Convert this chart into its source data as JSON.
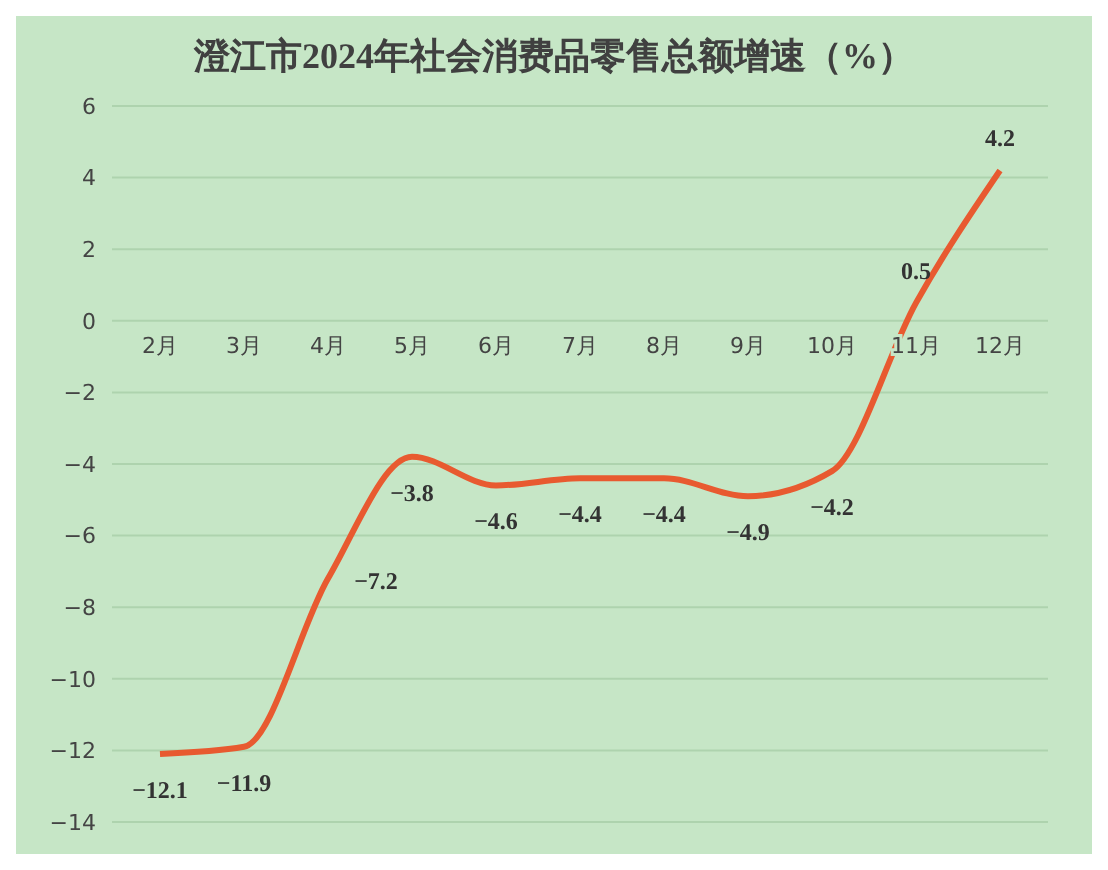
{
  "chart_data": {
    "type": "line",
    "title": "澄江市2024年社会消费品零售总额增速（%）",
    "categories": [
      "2月",
      "3月",
      "4月",
      "5月",
      "6月",
      "7月",
      "8月",
      "9月",
      "10月",
      "11月",
      "12月"
    ],
    "series": [
      {
        "color": "#e85a30",
        "values": [
          -12.1,
          -11.9,
          -7.2,
          -3.8,
          -4.6,
          -4.4,
          -4.4,
          -4.9,
          -4.2,
          0.5,
          4.2
        ]
      }
    ],
    "ylim": [
      -14,
      6
    ],
    "yticks": [
      -14,
      -12,
      -10,
      -8,
      -6,
      -4,
      -2,
      0,
      2,
      4,
      6
    ],
    "grid": "y",
    "data_labels": true,
    "marker": "none",
    "line_style": "solid"
  }
}
